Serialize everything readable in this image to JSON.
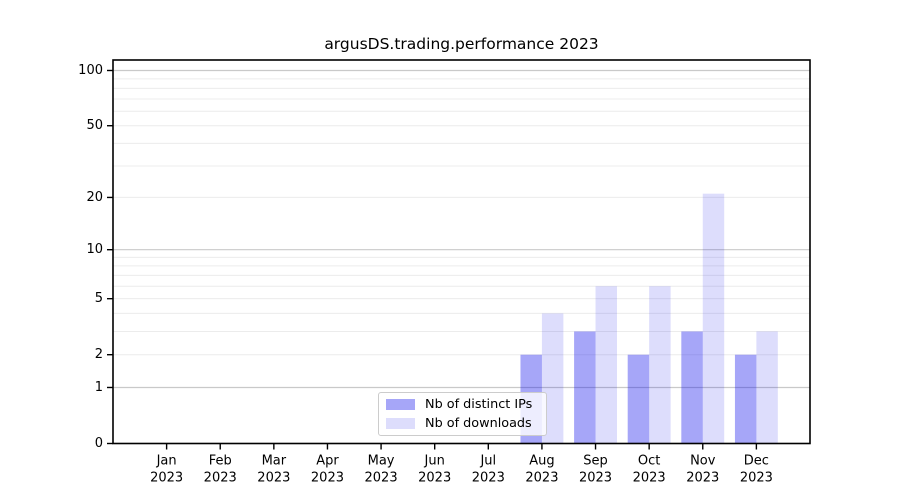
{
  "chart_data": {
    "type": "bar",
    "title": "argusDS.trading.performance 2023",
    "categories": [
      "Jan",
      "Feb",
      "Mar",
      "Apr",
      "May",
      "Jun",
      "Jul",
      "Aug",
      "Sep",
      "Oct",
      "Nov",
      "Dec"
    ],
    "category_year": "2023",
    "series": [
      {
        "name": "Nb of distinct IPs",
        "color": "rgba(13,13,236,0.37)",
        "values": [
          0,
          0,
          0,
          0,
          0,
          0,
          0,
          2,
          3,
          2,
          3,
          2
        ]
      },
      {
        "name": "Nb of downloads",
        "color": "rgba(13,13,236,0.14)",
        "values": [
          0,
          0,
          0,
          0,
          0,
          0,
          0,
          4,
          6,
          6,
          21,
          3
        ]
      }
    ],
    "xlabel": "",
    "ylabel": "",
    "yscale": "log1p",
    "ylim": [
      0,
      114
    ],
    "yticks": [
      0,
      1,
      2,
      5,
      10,
      20,
      50,
      100
    ],
    "grid": true,
    "grid_minor_values": [
      2,
      3,
      4,
      5,
      6,
      7,
      8,
      9,
      20,
      30,
      40,
      50,
      60,
      70,
      80,
      90
    ],
    "grid_major_values": [
      1,
      10,
      100
    ],
    "legend_position": "lower center inside",
    "colors": {
      "spine": "#000000",
      "tick": "#000000",
      "grid_minor": "#ececec",
      "grid_major": "#c9c9c9",
      "legend_border": "#cccccc",
      "legend_background": "rgba(255,255,255,0.8)"
    }
  }
}
